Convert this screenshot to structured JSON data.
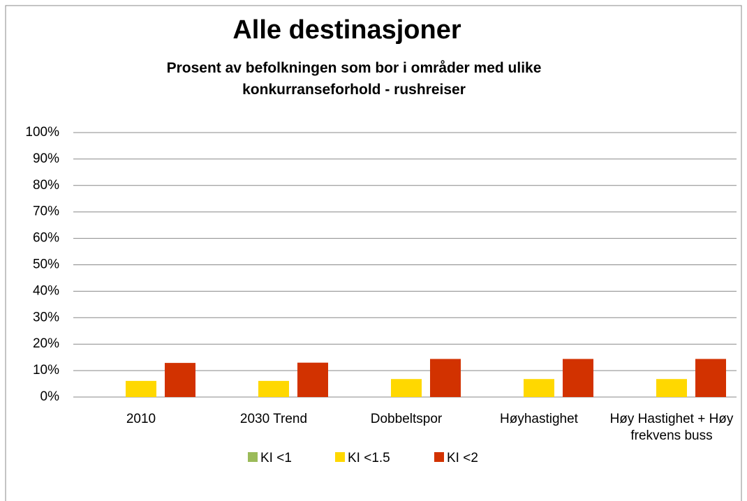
{
  "chart_data": {
    "type": "bar",
    "title": "Alle destinasjoner",
    "subtitle": "Prosent av befolkningen som bor i områder med ulike konkurranseforhold - rushreiser",
    "categories": [
      "2010",
      "2030 Trend",
      "Dobbeltspor",
      "Høyhastighet",
      "Høy Hastighet + Høy frekvens buss"
    ],
    "series": [
      {
        "name": "KI <1",
        "color": "#9bbb59",
        "values": [
          0,
          0,
          0,
          0,
          0
        ]
      },
      {
        "name": "KI <1.5",
        "color": "#ffd800",
        "values": [
          6.1,
          6.1,
          6.8,
          6.8,
          6.8
        ]
      },
      {
        "name": "KI <2",
        "color": "#d23200",
        "values": [
          12.9,
          13,
          14.4,
          14.4,
          14.4
        ]
      }
    ],
    "ylim": [
      0,
      100
    ],
    "yticks": [
      {
        "value": 0,
        "label": "0%"
      },
      {
        "value": 10,
        "label": "10%"
      },
      {
        "value": 20,
        "label": "20%"
      },
      {
        "value": 30,
        "label": "30%"
      },
      {
        "value": 40,
        "label": "40%"
      },
      {
        "value": 50,
        "label": "50%"
      },
      {
        "value": 60,
        "label": "60%"
      },
      {
        "value": 70,
        "label": "70%"
      },
      {
        "value": 80,
        "label": "80%"
      },
      {
        "value": 90,
        "label": "90%"
      },
      {
        "value": 100,
        "label": "100%"
      }
    ],
    "grid": true,
    "legend": "bottom"
  }
}
